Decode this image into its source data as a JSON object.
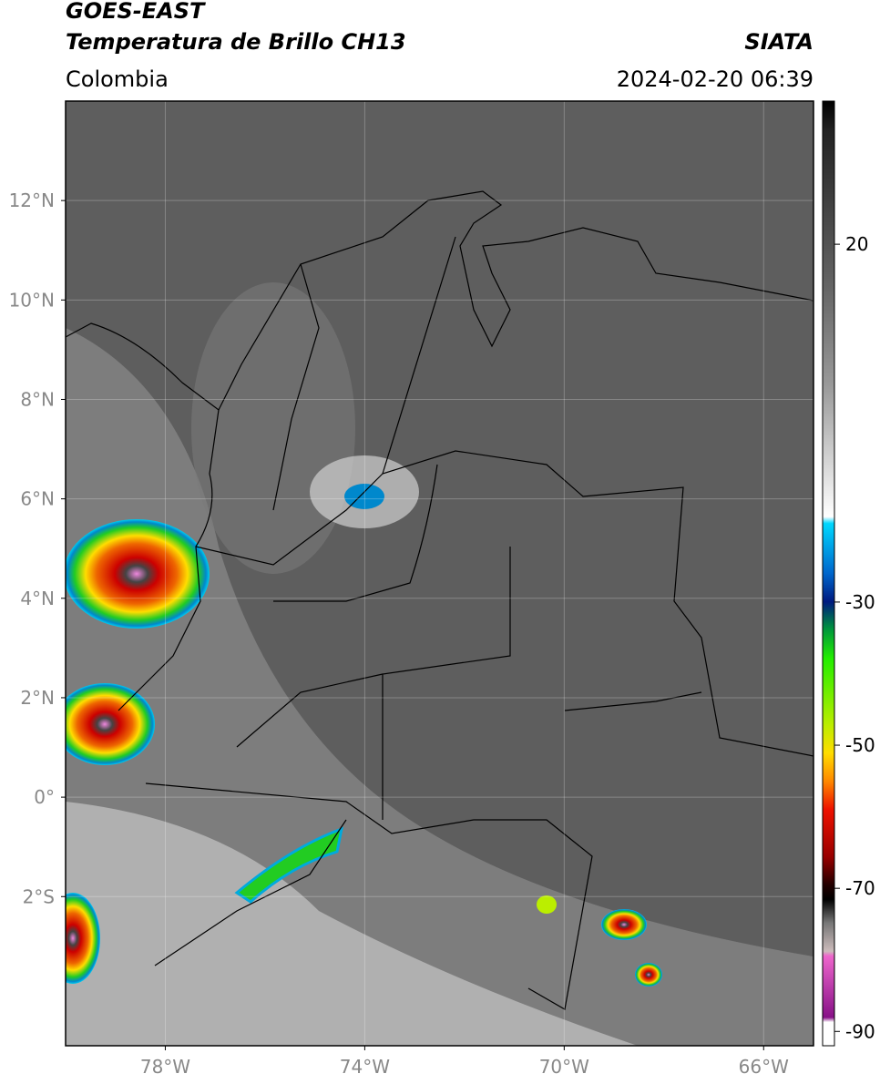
{
  "header": {
    "title_line1": "GOES-EAST",
    "title_line2": "Temperatura de Brillo CH13",
    "source": "SIATA",
    "region": "Colombia",
    "timestamp": "2024-02-20 06:39"
  },
  "map": {
    "lon_range": [
      -80,
      -65
    ],
    "lat_range": [
      14,
      -5
    ],
    "lon_ticks": [
      {
        "value": -78,
        "label": "78°W"
      },
      {
        "value": -74,
        "label": "74°W"
      },
      {
        "value": -70,
        "label": "70°W"
      },
      {
        "value": -66,
        "label": "66°W"
      }
    ],
    "lat_ticks": [
      {
        "value": 12,
        "label": "12°N"
      },
      {
        "value": 10,
        "label": "10°N"
      },
      {
        "value": 8,
        "label": "8°N"
      },
      {
        "value": 6,
        "label": "6°N"
      },
      {
        "value": 4,
        "label": "4°N"
      },
      {
        "value": 2,
        "label": "2°N"
      },
      {
        "value": 0,
        "label": "0°"
      },
      {
        "value": -2,
        "label": "2°S"
      }
    ]
  },
  "colorbar": {
    "range": [
      40,
      -92
    ],
    "ticks": [
      20,
      -30,
      -50,
      -70,
      -90
    ]
  }
}
